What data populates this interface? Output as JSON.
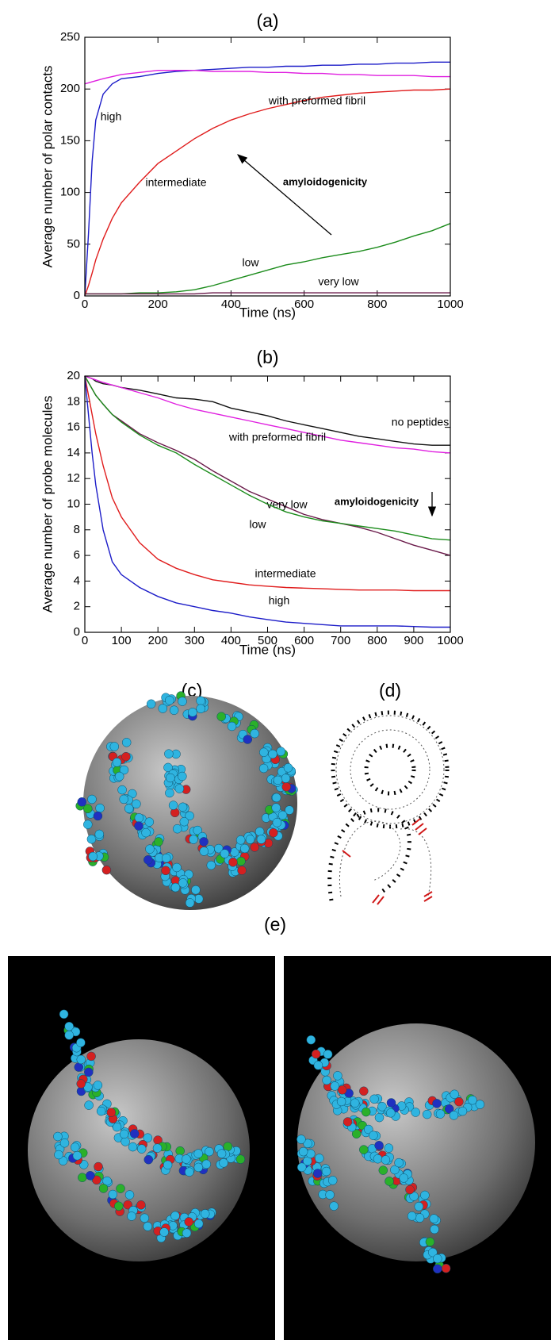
{
  "chart_data": [
    {
      "type": "line",
      "title": "(a)",
      "xlabel": "Time (ns)",
      "ylabel": "Average number of polar contacts",
      "x": [
        0,
        10,
        20,
        30,
        50,
        75,
        100,
        150,
        200,
        250,
        300,
        350,
        400,
        450,
        500,
        550,
        600,
        650,
        700,
        750,
        800,
        850,
        900,
        950,
        1000
      ],
      "xlim": [
        0,
        1000
      ],
      "xticks": [
        0,
        200,
        400,
        600,
        800,
        1000
      ],
      "ylim": [
        0,
        250
      ],
      "yticks": [
        0,
        50,
        100,
        150,
        200,
        250
      ],
      "grid": false,
      "series": [
        {
          "name": "high",
          "color": "#1c1cc8",
          "values": [
            0,
            60,
            130,
            170,
            195,
            205,
            210,
            212,
            215,
            217,
            218,
            219,
            220,
            221,
            221,
            222,
            222,
            223,
            223,
            224,
            224,
            225,
            225,
            226,
            226
          ]
        },
        {
          "name": "intermediate",
          "color": "#e01c1c",
          "values": [
            0,
            10,
            22,
            35,
            55,
            75,
            90,
            110,
            128,
            140,
            152,
            162,
            170,
            176,
            181,
            185,
            189,
            192,
            194,
            196,
            197,
            198,
            199,
            199,
            200
          ]
        },
        {
          "name": "low",
          "color": "#1c8c1c",
          "values": [
            2,
            2,
            2,
            2,
            2,
            2,
            2,
            3,
            3,
            4,
            6,
            10,
            15,
            20,
            25,
            30,
            33,
            37,
            40,
            43,
            47,
            52,
            58,
            63,
            70
          ]
        },
        {
          "name": "very low",
          "color": "#6a1a4a",
          "values": [
            2,
            2,
            2,
            2,
            2,
            2,
            2,
            2,
            2,
            2,
            2,
            3,
            3,
            3,
            3,
            3,
            3,
            3,
            3,
            3,
            3,
            3,
            3,
            3,
            3
          ]
        },
        {
          "name": "with preformed fibril",
          "color": "#e020e0",
          "values": [
            205,
            206,
            207,
            208,
            210,
            212,
            214,
            216,
            218,
            218,
            218,
            217,
            217,
            217,
            216,
            216,
            215,
            215,
            214,
            214,
            213,
            213,
            213,
            212,
            212
          ]
        }
      ],
      "annotation": "amyloidogenicity"
    },
    {
      "type": "line",
      "title": "(b)",
      "xlabel": "Time (ns)",
      "ylabel": "Average number of probe molecules",
      "x": [
        0,
        10,
        20,
        30,
        50,
        75,
        100,
        150,
        200,
        250,
        300,
        350,
        400,
        450,
        500,
        550,
        600,
        650,
        700,
        750,
        800,
        850,
        900,
        950,
        1000
      ],
      "xlim": [
        0,
        1000
      ],
      "xticks": [
        0,
        100,
        200,
        300,
        400,
        500,
        600,
        700,
        800,
        900,
        1000
      ],
      "ylim": [
        0,
        20
      ],
      "yticks": [
        0,
        2,
        4,
        6,
        8,
        10,
        12,
        14,
        16,
        18,
        20
      ],
      "grid": false,
      "series": [
        {
          "name": "no peptides",
          "color": "#111111",
          "values": [
            20,
            19.9,
            19.8,
            19.6,
            19.4,
            19.3,
            19.1,
            18.9,
            18.6,
            18.3,
            18.2,
            18,
            17.5,
            17.2,
            16.9,
            16.5,
            16.2,
            15.9,
            15.6,
            15.3,
            15.1,
            14.9,
            14.7,
            14.6,
            14.6
          ]
        },
        {
          "name": "with preformed fibril",
          "color": "#e020e0",
          "values": [
            20,
            19.9,
            19.8,
            19.7,
            19.5,
            19.3,
            19.1,
            18.7,
            18.3,
            17.8,
            17.4,
            17.1,
            16.8,
            16.5,
            16.2,
            15.9,
            15.6,
            15.3,
            15,
            14.8,
            14.6,
            14.4,
            14.3,
            14.1,
            14
          ]
        },
        {
          "name": "very low",
          "color": "#6a1a4a",
          "values": [
            20,
            19.5,
            19,
            18.5,
            17.8,
            17,
            16.5,
            15.5,
            14.8,
            14.2,
            13.5,
            12.6,
            11.8,
            11,
            10.4,
            9.8,
            9.2,
            8.8,
            8.5,
            8.2,
            7.8,
            7.3,
            6.8,
            6.4,
            6
          ]
        },
        {
          "name": "low",
          "color": "#1c8c1c",
          "values": [
            20,
            19.5,
            19,
            18.5,
            17.8,
            17,
            16.4,
            15.4,
            14.6,
            14,
            13.1,
            12.3,
            11.5,
            10.7,
            10,
            9.4,
            9,
            8.7,
            8.5,
            8.3,
            8.1,
            7.9,
            7.6,
            7.3,
            7.2
          ]
        },
        {
          "name": "intermediate",
          "color": "#e01c1c",
          "values": [
            20,
            18.5,
            17,
            15.5,
            13,
            10.5,
            9,
            7,
            5.7,
            5,
            4.5,
            4.1,
            3.9,
            3.7,
            3.6,
            3.5,
            3.45,
            3.4,
            3.35,
            3.3,
            3.3,
            3.3,
            3.25,
            3.25,
            3.25
          ]
        },
        {
          "name": "high",
          "color": "#1c1cc8",
          "values": [
            20,
            17,
            14,
            11.5,
            8,
            5.5,
            4.5,
            3.5,
            2.8,
            2.3,
            2,
            1.7,
            1.5,
            1.2,
            1,
            0.8,
            0.7,
            0.6,
            0.5,
            0.5,
            0.5,
            0.5,
            0.45,
            0.4,
            0.4
          ]
        }
      ],
      "annotation": "amyloidogenicity"
    }
  ],
  "panels": {
    "c": "(c)",
    "d": "(d)",
    "e": "(e)"
  }
}
